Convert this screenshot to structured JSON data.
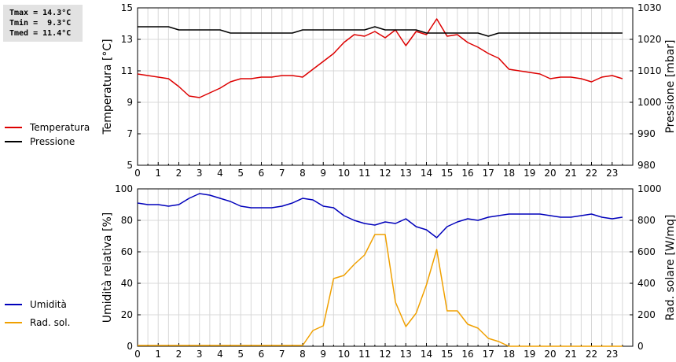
{
  "stats": {
    "tmax": "Tmax = 14.3°C",
    "tmin": "Tmin =  9.3°C",
    "tmed": "Tmed = 11.4°C"
  },
  "chart_data": [
    {
      "type": "line",
      "xlabel": "",
      "ylabel": "Temperatura [°C]",
      "ylabel_right": "Pressione [mbar]",
      "xlim": [
        0,
        24
      ],
      "ylim": [
        5,
        15
      ],
      "ylim_right": [
        980,
        1030
      ],
      "x_ticks": [
        "0",
        "1",
        "2",
        "3",
        "4",
        "5",
        "6",
        "7",
        "8",
        "9",
        "10",
        "11",
        "12",
        "13",
        "14",
        "15",
        "16",
        "17",
        "18",
        "19",
        "20",
        "21",
        "22",
        "23"
      ],
      "y_ticks": [
        "5",
        "7",
        "9",
        "11",
        "13",
        "15"
      ],
      "y_ticks_right": [
        "980",
        "990",
        "1000",
        "1010",
        "1020",
        "1030"
      ],
      "grid": true,
      "legend_position": "left",
      "series": [
        {
          "name": "Temperatura",
          "axis": "left",
          "color": "#dd0000",
          "x": [
            0,
            0.5,
            1,
            1.5,
            2,
            2.5,
            3,
            3.5,
            4,
            4.5,
            5,
            5.5,
            6,
            6.5,
            7,
            7.5,
            8,
            8.5,
            9,
            9.5,
            10,
            10.5,
            11,
            11.5,
            12,
            12.5,
            13,
            13.5,
            14,
            14.5,
            15,
            15.5,
            16,
            16.5,
            17,
            17.5,
            18,
            18.5,
            19,
            19.5,
            20,
            20.5,
            21,
            21.5,
            22,
            22.5,
            23,
            23.5
          ],
          "y": [
            10.8,
            10.7,
            10.6,
            10.5,
            10.0,
            9.4,
            9.3,
            9.6,
            9.9,
            10.3,
            10.5,
            10.5,
            10.6,
            10.6,
            10.7,
            10.7,
            10.6,
            11.1,
            11.6,
            12.1,
            12.8,
            13.3,
            13.2,
            13.5,
            13.1,
            13.6,
            12.6,
            13.5,
            13.3,
            14.3,
            13.2,
            13.3,
            12.8,
            12.5,
            12.1,
            11.8,
            11.1,
            11.0,
            10.9,
            10.8,
            10.5,
            10.6,
            10.6,
            10.5,
            10.3,
            10.6,
            10.7,
            10.5
          ]
        },
        {
          "name": "Pressione",
          "axis": "right",
          "color": "#000000",
          "x": [
            0,
            0.5,
            1,
            1.5,
            2,
            2.5,
            3,
            3.5,
            4,
            4.5,
            5,
            5.5,
            6,
            6.5,
            7,
            7.5,
            8,
            8.5,
            9,
            9.5,
            10,
            10.5,
            11,
            11.5,
            12,
            12.5,
            13,
            13.5,
            14,
            14.5,
            15,
            15.5,
            16,
            16.5,
            17,
            17.5,
            18,
            18.5,
            19,
            19.5,
            20,
            20.5,
            21,
            21.5,
            22,
            22.5,
            23,
            23.5
          ],
          "y": [
            1024,
            1024,
            1024,
            1024,
            1023,
            1023,
            1023,
            1023,
            1023,
            1022,
            1022,
            1022,
            1022,
            1022,
            1022,
            1022,
            1023,
            1023,
            1023,
            1023,
            1023,
            1023,
            1023,
            1024,
            1023,
            1023,
            1023,
            1023,
            1022,
            1022,
            1022,
            1022,
            1022,
            1022,
            1021,
            1022,
            1022,
            1022,
            1022,
            1022,
            1022,
            1022,
            1022,
            1022,
            1022,
            1022,
            1022,
            1022
          ]
        }
      ]
    },
    {
      "type": "line",
      "xlabel": "",
      "ylabel": "Umidità relativa [%]",
      "ylabel_right": "Rad. solare [W/mq]",
      "xlim": [
        0,
        24
      ],
      "ylim": [
        0,
        100
      ],
      "ylim_right": [
        0,
        1000
      ],
      "x_ticks": [
        "0",
        "1",
        "2",
        "3",
        "4",
        "5",
        "6",
        "7",
        "8",
        "9",
        "10",
        "11",
        "12",
        "13",
        "14",
        "15",
        "16",
        "17",
        "18",
        "19",
        "20",
        "21",
        "22",
        "23"
      ],
      "y_ticks": [
        "0",
        "20",
        "40",
        "60",
        "80",
        "100"
      ],
      "y_ticks_right": [
        "0",
        "200",
        "400",
        "600",
        "800",
        "1000"
      ],
      "grid": true,
      "legend_position": "left",
      "series": [
        {
          "name": "Umidità",
          "axis": "left",
          "color": "#0000bb",
          "x": [
            0,
            0.5,
            1,
            1.5,
            2,
            2.5,
            3,
            3.5,
            4,
            4.5,
            5,
            5.5,
            6,
            6.5,
            7,
            7.5,
            8,
            8.5,
            9,
            9.5,
            10,
            10.5,
            11,
            11.5,
            12,
            12.5,
            13,
            13.5,
            14,
            14.5,
            15,
            15.5,
            16,
            16.5,
            17,
            17.5,
            18,
            18.5,
            19,
            19.5,
            20,
            20.5,
            21,
            21.5,
            22,
            22.5,
            23,
            23.5
          ],
          "y": [
            91,
            90,
            90,
            89,
            90,
            94,
            97,
            96,
            94,
            92,
            89,
            88,
            88,
            88,
            89,
            91,
            94,
            93,
            89,
            88,
            83,
            80,
            78,
            77,
            79,
            78,
            81,
            76,
            74,
            69,
            76,
            79,
            81,
            80,
            82,
            83,
            84,
            84,
            84,
            84,
            83,
            82,
            82,
            83,
            84,
            82,
            81,
            82
          ]
        },
        {
          "name": "Rad. sol.",
          "axis": "right",
          "color": "#f0a000",
          "x": [
            0,
            0.5,
            1,
            1.5,
            2,
            2.5,
            3,
            3.5,
            4,
            4.5,
            5,
            5.5,
            6,
            6.5,
            7,
            7.5,
            8,
            8.5,
            9,
            9.5,
            10,
            10.5,
            11,
            11.5,
            12,
            12.5,
            13,
            13.5,
            14,
            14.5,
            15,
            15.5,
            16,
            16.5,
            17,
            17.5,
            18,
            18.5,
            19,
            19.5,
            20,
            20.5,
            21,
            21.5,
            22,
            22.5,
            23,
            23.5
          ],
          "y": [
            5,
            5,
            5,
            5,
            5,
            5,
            5,
            5,
            5,
            5,
            5,
            5,
            5,
            5,
            5,
            5,
            5,
            100,
            130,
            430,
            450,
            520,
            580,
            710,
            710,
            280,
            125,
            210,
            390,
            615,
            225,
            225,
            140,
            115,
            50,
            30,
            0,
            0,
            0,
            0,
            0,
            0,
            0,
            0,
            0,
            0,
            0,
            0
          ]
        }
      ]
    }
  ]
}
